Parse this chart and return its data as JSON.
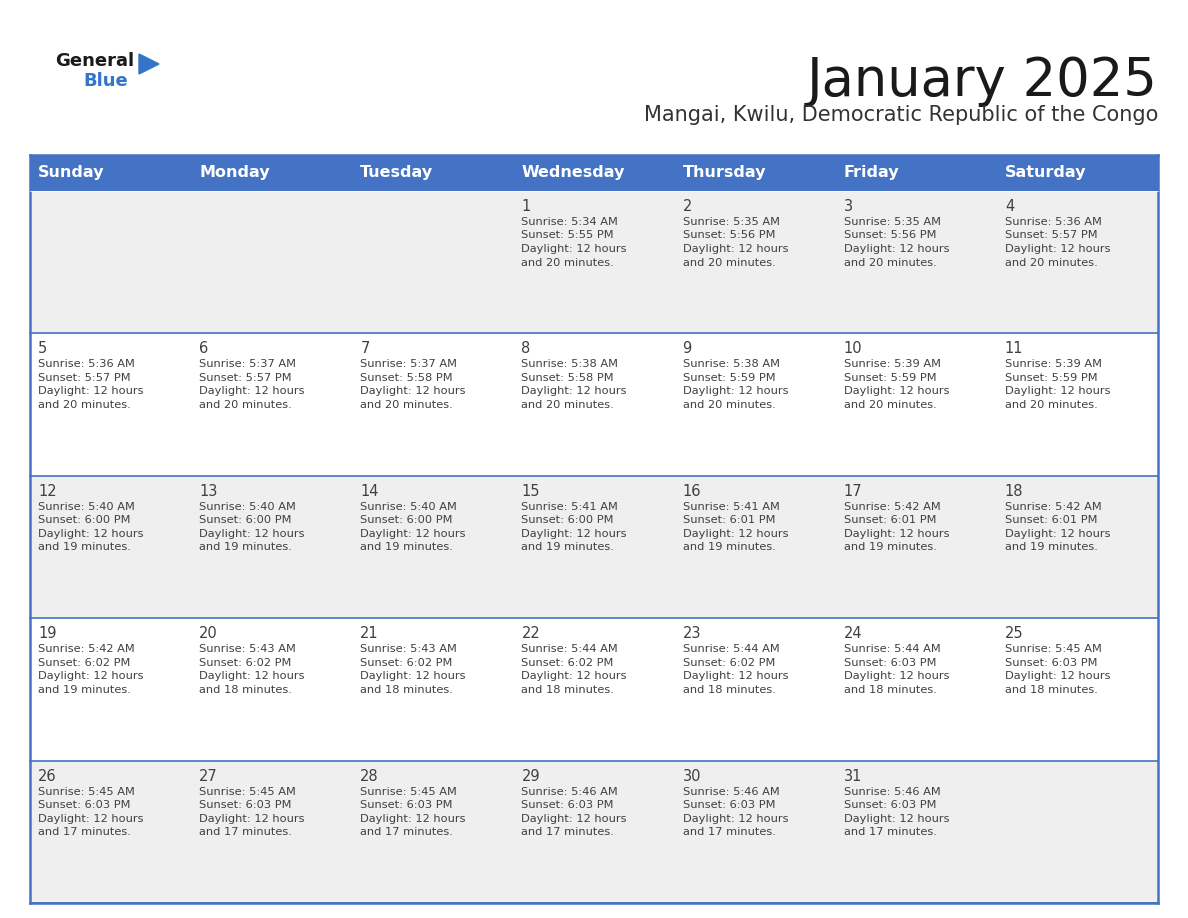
{
  "title": "January 2025",
  "subtitle": "Mangai, Kwilu, Democratic Republic of the Congo",
  "header_bg": "#4472C4",
  "header_text_color": "#FFFFFF",
  "row_bg_odd": "#EFEFEF",
  "row_bg_even": "#FFFFFF",
  "cell_text_color": "#404040",
  "day_number_color": "#404040",
  "border_color": "#4472C4",
  "separator_color": "#4472C4",
  "days_of_week": [
    "Sunday",
    "Monday",
    "Tuesday",
    "Wednesday",
    "Thursday",
    "Friday",
    "Saturday"
  ],
  "calendar_data": [
    [
      {
        "day": null,
        "sunrise": null,
        "sunset": null,
        "daylight": null
      },
      {
        "day": null,
        "sunrise": null,
        "sunset": null,
        "daylight": null
      },
      {
        "day": null,
        "sunrise": null,
        "sunset": null,
        "daylight": null
      },
      {
        "day": 1,
        "sunrise": "5:34 AM",
        "sunset": "5:55 PM",
        "daylight": "12 hours\nand 20 minutes."
      },
      {
        "day": 2,
        "sunrise": "5:35 AM",
        "sunset": "5:56 PM",
        "daylight": "12 hours\nand 20 minutes."
      },
      {
        "day": 3,
        "sunrise": "5:35 AM",
        "sunset": "5:56 PM",
        "daylight": "12 hours\nand 20 minutes."
      },
      {
        "day": 4,
        "sunrise": "5:36 AM",
        "sunset": "5:57 PM",
        "daylight": "12 hours\nand 20 minutes."
      }
    ],
    [
      {
        "day": 5,
        "sunrise": "5:36 AM",
        "sunset": "5:57 PM",
        "daylight": "12 hours\nand 20 minutes."
      },
      {
        "day": 6,
        "sunrise": "5:37 AM",
        "sunset": "5:57 PM",
        "daylight": "12 hours\nand 20 minutes."
      },
      {
        "day": 7,
        "sunrise": "5:37 AM",
        "sunset": "5:58 PM",
        "daylight": "12 hours\nand 20 minutes."
      },
      {
        "day": 8,
        "sunrise": "5:38 AM",
        "sunset": "5:58 PM",
        "daylight": "12 hours\nand 20 minutes."
      },
      {
        "day": 9,
        "sunrise": "5:38 AM",
        "sunset": "5:59 PM",
        "daylight": "12 hours\nand 20 minutes."
      },
      {
        "day": 10,
        "sunrise": "5:39 AM",
        "sunset": "5:59 PM",
        "daylight": "12 hours\nand 20 minutes."
      },
      {
        "day": 11,
        "sunrise": "5:39 AM",
        "sunset": "5:59 PM",
        "daylight": "12 hours\nand 20 minutes."
      }
    ],
    [
      {
        "day": 12,
        "sunrise": "5:40 AM",
        "sunset": "6:00 PM",
        "daylight": "12 hours\nand 19 minutes."
      },
      {
        "day": 13,
        "sunrise": "5:40 AM",
        "sunset": "6:00 PM",
        "daylight": "12 hours\nand 19 minutes."
      },
      {
        "day": 14,
        "sunrise": "5:40 AM",
        "sunset": "6:00 PM",
        "daylight": "12 hours\nand 19 minutes."
      },
      {
        "day": 15,
        "sunrise": "5:41 AM",
        "sunset": "6:00 PM",
        "daylight": "12 hours\nand 19 minutes."
      },
      {
        "day": 16,
        "sunrise": "5:41 AM",
        "sunset": "6:01 PM",
        "daylight": "12 hours\nand 19 minutes."
      },
      {
        "day": 17,
        "sunrise": "5:42 AM",
        "sunset": "6:01 PM",
        "daylight": "12 hours\nand 19 minutes."
      },
      {
        "day": 18,
        "sunrise": "5:42 AM",
        "sunset": "6:01 PM",
        "daylight": "12 hours\nand 19 minutes."
      }
    ],
    [
      {
        "day": 19,
        "sunrise": "5:42 AM",
        "sunset": "6:02 PM",
        "daylight": "12 hours\nand 19 minutes."
      },
      {
        "day": 20,
        "sunrise": "5:43 AM",
        "sunset": "6:02 PM",
        "daylight": "12 hours\nand 18 minutes."
      },
      {
        "day": 21,
        "sunrise": "5:43 AM",
        "sunset": "6:02 PM",
        "daylight": "12 hours\nand 18 minutes."
      },
      {
        "day": 22,
        "sunrise": "5:44 AM",
        "sunset": "6:02 PM",
        "daylight": "12 hours\nand 18 minutes."
      },
      {
        "day": 23,
        "sunrise": "5:44 AM",
        "sunset": "6:02 PM",
        "daylight": "12 hours\nand 18 minutes."
      },
      {
        "day": 24,
        "sunrise": "5:44 AM",
        "sunset": "6:03 PM",
        "daylight": "12 hours\nand 18 minutes."
      },
      {
        "day": 25,
        "sunrise": "5:45 AM",
        "sunset": "6:03 PM",
        "daylight": "12 hours\nand 18 minutes."
      }
    ],
    [
      {
        "day": 26,
        "sunrise": "5:45 AM",
        "sunset": "6:03 PM",
        "daylight": "12 hours\nand 17 minutes."
      },
      {
        "day": 27,
        "sunrise": "5:45 AM",
        "sunset": "6:03 PM",
        "daylight": "12 hours\nand 17 minutes."
      },
      {
        "day": 28,
        "sunrise": "5:45 AM",
        "sunset": "6:03 PM",
        "daylight": "12 hours\nand 17 minutes."
      },
      {
        "day": 29,
        "sunrise": "5:46 AM",
        "sunset": "6:03 PM",
        "daylight": "12 hours\nand 17 minutes."
      },
      {
        "day": 30,
        "sunrise": "5:46 AM",
        "sunset": "6:03 PM",
        "daylight": "12 hours\nand 17 minutes."
      },
      {
        "day": 31,
        "sunrise": "5:46 AM",
        "sunset": "6:03 PM",
        "daylight": "12 hours\nand 17 minutes."
      },
      {
        "day": null,
        "sunrise": null,
        "sunset": null,
        "daylight": null
      }
    ]
  ],
  "title_fontsize": 38,
  "subtitle_fontsize": 15,
  "header_fontsize": 11.5,
  "day_num_fontsize": 10.5,
  "cell_fontsize": 8.2,
  "logo_general_fontsize": 13,
  "logo_blue_fontsize": 13
}
